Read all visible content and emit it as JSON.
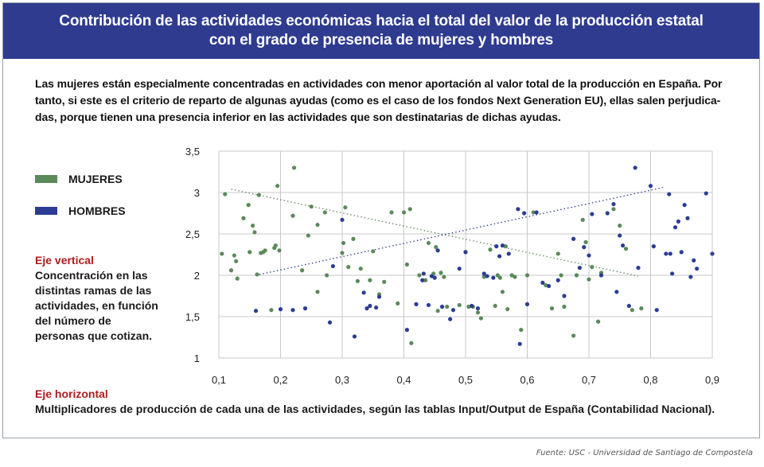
{
  "header": {
    "title_line1": "Contribución de las actividades económicas hacia el total del valor de la producción estatal",
    "title_line2": "con el grado de presencia de mujeres y hombres"
  },
  "intro": {
    "line1": "Las mujeres están especialmente concentradas en actividades con menor aportación al valor total de la producción en España. Por",
    "line2": "tanto, si este es el criterio de reparto de algunas ayudas (como es el caso de los fondos Next Generation EU), ellas salen perjudica-",
    "line3": "das, porque tienen una presencia inferior en las actividades que son destinatarias de dichas ayudas."
  },
  "legend": {
    "women_label": "MUJERES",
    "men_label": "HOMBRES"
  },
  "axis_desc": {
    "vertical_title": "Eje vertical",
    "vertical_body": "Concentración en las distintas ramas de las actividades, en función del número de personas que cotizan.",
    "horizontal_title": "Eje horizontal",
    "horizontal_body": "Multiplicadores de producción de cada una de las actividades, según las tablas Input/Output de España (Contabilidad Nacional)."
  },
  "source": "Fuente: USC - Universidad de Santiago de Compostela",
  "colors": {
    "women": "#5b8a5a",
    "men": "#2c3c95",
    "banner": "#2e3b8f",
    "grid": "#c8c8c8"
  },
  "chart_data": {
    "type": "scatter",
    "title": "",
    "xlabel": "",
    "ylabel": "",
    "xlim": [
      0.1,
      0.9
    ],
    "ylim": [
      1,
      3.5
    ],
    "x_ticks": [
      "0,1",
      "0,2",
      "0,3",
      "0,4",
      "0,5",
      "0,6",
      "0,7",
      "0,8",
      "0,9"
    ],
    "y_ticks": [
      "1",
      "1,5",
      "2",
      "2,5",
      "3",
      "3,5"
    ],
    "grid": true,
    "series": [
      {
        "name": "MUJERES",
        "color": "#5b8a5a",
        "trend": [
          [
            0.12,
            3.04
          ],
          [
            0.78,
            1.99
          ]
        ],
        "points": [
          [
            0.105,
            2.26
          ],
          [
            0.11,
            2.98
          ],
          [
            0.12,
            2.06
          ],
          [
            0.125,
            2.24
          ],
          [
            0.128,
            2.17
          ],
          [
            0.13,
            1.96
          ],
          [
            0.14,
            2.69
          ],
          [
            0.148,
            2.85
          ],
          [
            0.15,
            2.28
          ],
          [
            0.155,
            2.6
          ],
          [
            0.158,
            2.52
          ],
          [
            0.162,
            2.01
          ],
          [
            0.165,
            2.97
          ],
          [
            0.168,
            2.27
          ],
          [
            0.172,
            2.28
          ],
          [
            0.175,
            2.3
          ],
          [
            0.185,
            1.58
          ],
          [
            0.19,
            2.33
          ],
          [
            0.192,
            2.36
          ],
          [
            0.195,
            3.08
          ],
          [
            0.198,
            2.3
          ],
          [
            0.22,
            2.72
          ],
          [
            0.222,
            3.3
          ],
          [
            0.235,
            2.06
          ],
          [
            0.245,
            2.48
          ],
          [
            0.25,
            2.83
          ],
          [
            0.26,
            2.61
          ],
          [
            0.26,
            1.8
          ],
          [
            0.272,
            2.76
          ],
          [
            0.275,
            2.0
          ],
          [
            0.3,
            2.27
          ],
          [
            0.302,
            2.39
          ],
          [
            0.305,
            2.82
          ],
          [
            0.31,
            2.1
          ],
          [
            0.318,
            2.44
          ],
          [
            0.325,
            1.93
          ],
          [
            0.33,
            2.08
          ],
          [
            0.345,
            1.94
          ],
          [
            0.35,
            2.29
          ],
          [
            0.36,
            1.77
          ],
          [
            0.368,
            1.92
          ],
          [
            0.38,
            2.76
          ],
          [
            0.39,
            1.66
          ],
          [
            0.4,
            2.76
          ],
          [
            0.405,
            2.13
          ],
          [
            0.41,
            2.8
          ],
          [
            0.412,
            1.18
          ],
          [
            0.425,
            2.0
          ],
          [
            0.435,
            1.94
          ],
          [
            0.44,
            2.39
          ],
          [
            0.448,
            2.02
          ],
          [
            0.452,
            2.34
          ],
          [
            0.455,
            1.57
          ],
          [
            0.46,
            2.03
          ],
          [
            0.465,
            1.98
          ],
          [
            0.47,
            1.62
          ],
          [
            0.49,
            1.64
          ],
          [
            0.5,
            2.28
          ],
          [
            0.505,
            1.62
          ],
          [
            0.512,
            1.62
          ],
          [
            0.52,
            1.55
          ],
          [
            0.525,
            1.48
          ],
          [
            0.53,
            1.98
          ],
          [
            0.54,
            2.31
          ],
          [
            0.548,
            1.63
          ],
          [
            0.552,
            2.0
          ],
          [
            0.556,
            1.97
          ],
          [
            0.56,
            1.8
          ],
          [
            0.565,
            2.35
          ],
          [
            0.568,
            1.59
          ],
          [
            0.575,
            2.0
          ],
          [
            0.58,
            1.98
          ],
          [
            0.59,
            1.34
          ],
          [
            0.6,
            2.0
          ],
          [
            0.61,
            2.76
          ],
          [
            0.63,
            1.88
          ],
          [
            0.64,
            1.6
          ],
          [
            0.65,
            2.26
          ],
          [
            0.655,
            2.0
          ],
          [
            0.66,
            1.62
          ],
          [
            0.675,
            1.27
          ],
          [
            0.68,
            2.0
          ],
          [
            0.69,
            2.67
          ],
          [
            0.695,
            2.4
          ],
          [
            0.7,
            1.95
          ],
          [
            0.705,
            2.1
          ],
          [
            0.715,
            1.44
          ],
          [
            0.72,
            2.03
          ],
          [
            0.74,
            2.8
          ],
          [
            0.75,
            2.6
          ],
          [
            0.76,
            2.32
          ],
          [
            0.77,
            1.58
          ],
          [
            0.785,
            1.6
          ]
        ]
      },
      {
        "name": "HOMBRES",
        "color": "#2c3c95",
        "trend": [
          [
            0.16,
            2.0
          ],
          [
            0.82,
            3.06
          ]
        ],
        "points": [
          [
            0.16,
            1.57
          ],
          [
            0.2,
            1.59
          ],
          [
            0.22,
            1.58
          ],
          [
            0.24,
            1.6
          ],
          [
            0.28,
            1.43
          ],
          [
            0.285,
            2.11
          ],
          [
            0.3,
            2.67
          ],
          [
            0.32,
            1.26
          ],
          [
            0.335,
            1.79
          ],
          [
            0.34,
            1.6
          ],
          [
            0.345,
            1.63
          ],
          [
            0.355,
            1.61
          ],
          [
            0.36,
            1.74
          ],
          [
            0.405,
            1.34
          ],
          [
            0.42,
            1.65
          ],
          [
            0.43,
            1.94
          ],
          [
            0.432,
            2.02
          ],
          [
            0.44,
            1.64
          ],
          [
            0.445,
            1.99
          ],
          [
            0.45,
            1.97
          ],
          [
            0.455,
            2.3
          ],
          [
            0.462,
            1.62
          ],
          [
            0.475,
            1.47
          ],
          [
            0.48,
            1.58
          ],
          [
            0.49,
            2.08
          ],
          [
            0.5,
            2.28
          ],
          [
            0.51,
            1.63
          ],
          [
            0.52,
            1.6
          ],
          [
            0.53,
            2.02
          ],
          [
            0.535,
            1.99
          ],
          [
            0.545,
            1.97
          ],
          [
            0.55,
            2.35
          ],
          [
            0.555,
            2.23
          ],
          [
            0.56,
            2.36
          ],
          [
            0.57,
            2.26
          ],
          [
            0.585,
            2.8
          ],
          [
            0.588,
            1.17
          ],
          [
            0.595,
            2.75
          ],
          [
            0.6,
            1.65
          ],
          [
            0.615,
            2.76
          ],
          [
            0.625,
            1.91
          ],
          [
            0.635,
            1.87
          ],
          [
            0.65,
            1.94
          ],
          [
            0.66,
            1.75
          ],
          [
            0.675,
            2.44
          ],
          [
            0.685,
            2.09
          ],
          [
            0.692,
            2.34
          ],
          [
            0.7,
            2.24
          ],
          [
            0.705,
            2.74
          ],
          [
            0.72,
            2.0
          ],
          [
            0.73,
            2.75
          ],
          [
            0.74,
            2.86
          ],
          [
            0.745,
            1.8
          ],
          [
            0.75,
            2.48
          ],
          [
            0.755,
            2.36
          ],
          [
            0.765,
            1.63
          ],
          [
            0.775,
            3.3
          ],
          [
            0.78,
            2.09
          ],
          [
            0.8,
            3.08
          ],
          [
            0.805,
            2.35
          ],
          [
            0.81,
            1.58
          ],
          [
            0.825,
            2.26
          ],
          [
            0.83,
            2.98
          ],
          [
            0.832,
            2.26
          ],
          [
            0.835,
            2.02
          ],
          [
            0.84,
            2.58
          ],
          [
            0.845,
            2.65
          ],
          [
            0.85,
            2.28
          ],
          [
            0.855,
            2.85
          ],
          [
            0.86,
            2.69
          ],
          [
            0.865,
            1.98
          ],
          [
            0.87,
            2.18
          ],
          [
            0.875,
            2.08
          ],
          [
            0.89,
            2.99
          ],
          [
            0.9,
            2.26
          ]
        ]
      }
    ]
  }
}
